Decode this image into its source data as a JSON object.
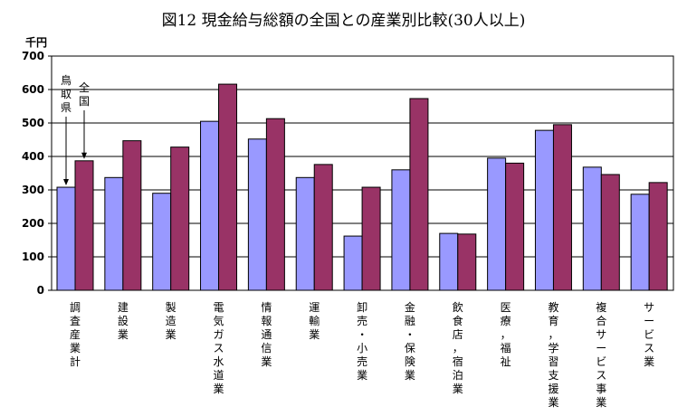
{
  "chart_data": {
    "type": "bar",
    "title": "図12  現金給与総額の全国との産業別比較(30人以上)",
    "ylabel": "千円",
    "ylim": [
      0,
      700
    ],
    "yticks": [
      0,
      100,
      200,
      300,
      400,
      500,
      600,
      700
    ],
    "grid": true,
    "categories": [
      "調査産業計",
      "建設業",
      "製造業",
      "電気ガス水道業",
      "情報通信業",
      "運輸業",
      "卸売・小売業",
      "金融・保険業",
      "飲食店，宿泊業",
      "医療，福祉",
      "教育，学習支援業",
      "複合サービス事業",
      "サービス業"
    ],
    "series": [
      {
        "name": "鳥取県",
        "color": "#9999ff",
        "values": [
          308,
          337,
          290,
          505,
          452,
          337,
          162,
          360,
          170,
          395,
          478,
          368,
          287
        ]
      },
      {
        "name": "全国",
        "color": "#993366",
        "values": [
          387,
          447,
          428,
          616,
          513,
          376,
          308,
          573,
          168,
          380,
          495,
          346,
          322
        ]
      }
    ]
  }
}
